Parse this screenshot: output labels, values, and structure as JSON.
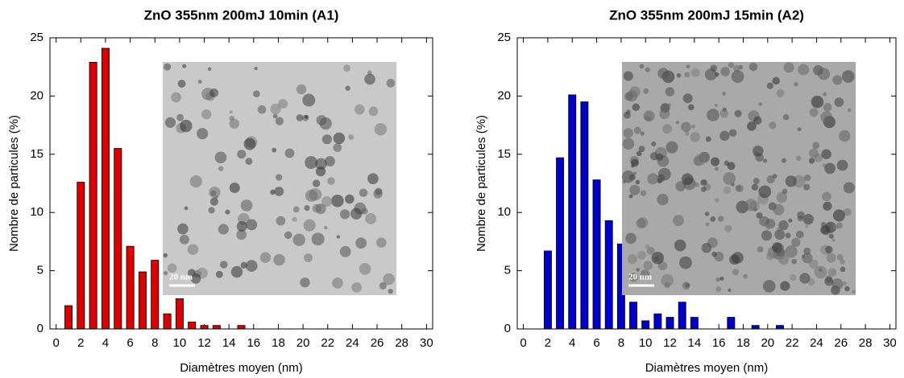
{
  "chart_data": [
    {
      "type": "bar",
      "title": "ZnO 355nm 200mJ 10min (A1)",
      "x_label": "Diamètres moyen (nm)",
      "y_label": "Nombre de particules (%)",
      "x": [
        1,
        2,
        3,
        4,
        5,
        6,
        7,
        8,
        9,
        10,
        11,
        12,
        13,
        15
      ],
      "values": [
        2,
        12.6,
        22.9,
        24.1,
        15.5,
        7.1,
        4.9,
        5.9,
        1.3,
        2.6,
        0.6,
        0.3,
        0.3,
        0.3
      ],
      "color": "#dd0000",
      "xlim": [
        -0.5,
        30.5
      ],
      "ylim": [
        0,
        25
      ],
      "xticks": [
        0,
        2,
        4,
        6,
        8,
        10,
        12,
        14,
        16,
        18,
        20,
        22,
        24,
        26,
        28,
        30
      ],
      "yticks": [
        0,
        5,
        10,
        15,
        20,
        25
      ],
      "inset_label": "20 nm"
    },
    {
      "type": "bar",
      "title": "ZnO 355nm 200mJ 15min (A2)",
      "x_label": "Diamètres moyen (nm)",
      "y_label": "Nombre de particules (%)",
      "x": [
        2,
        3,
        4,
        5,
        6,
        7,
        8,
        9,
        10,
        11,
        12,
        13,
        14,
        17,
        19,
        21
      ],
      "values": [
        6.7,
        14.7,
        20.1,
        19.5,
        12.8,
        9.3,
        7.3,
        2.3,
        0.7,
        1.3,
        1.0,
        2.3,
        1.0,
        1.0,
        0.3,
        0.3
      ],
      "color": "#0000cc",
      "xlim": [
        -0.5,
        30.5
      ],
      "ylim": [
        0,
        25
      ],
      "xticks": [
        0,
        2,
        4,
        6,
        8,
        10,
        12,
        14,
        16,
        18,
        20,
        22,
        24,
        26,
        28,
        30
      ],
      "yticks": [
        0,
        5,
        10,
        15,
        20,
        25
      ],
      "inset_label": "20 nm"
    }
  ]
}
